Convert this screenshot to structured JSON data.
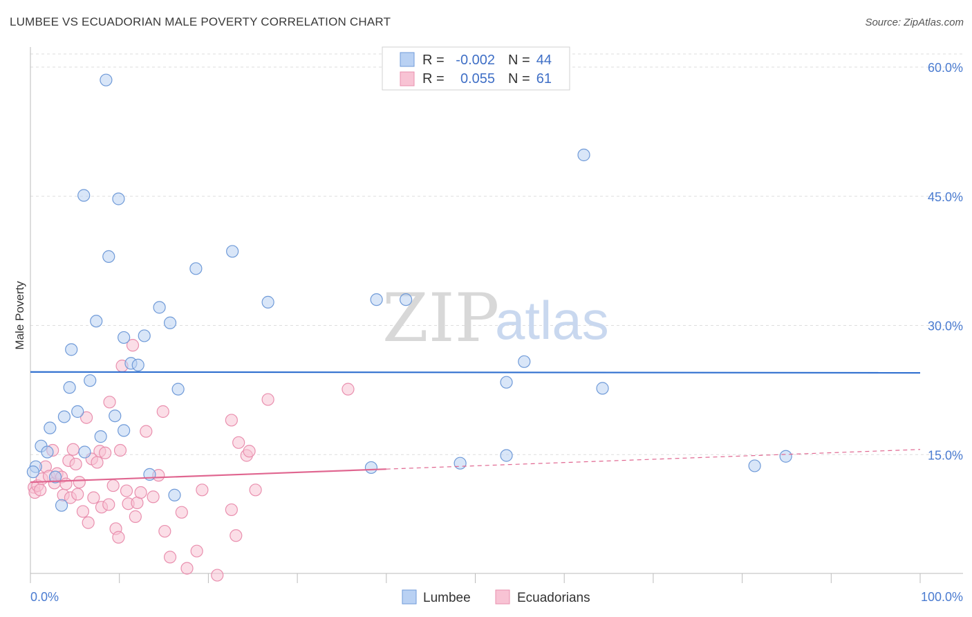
{
  "title": "LUMBEE VS ECUADORIAN MALE POVERTY CORRELATION CHART",
  "source": "Source: ZipAtlas.com",
  "watermark": {
    "zip": "ZIP",
    "atlas": "atlas"
  },
  "colors": {
    "lumbee_fill": "#b9d1f3",
    "lumbee_stroke": "#6f9ad8",
    "lumbee_line": "#2f6fcf",
    "ecuadorian_fill": "#f8c3d4",
    "ecuadorian_stroke": "#e98fae",
    "ecuadorian_line": "#e06690",
    "tick": "#4a7bd0",
    "grid": "#dddddd"
  },
  "legend": {
    "row1": {
      "r_label": "R =",
      "r_value": "-0.002",
      "n_label": "N =",
      "n_value": "44"
    },
    "row2": {
      "r_label": "R =",
      "r_value": "0.055",
      "n_label": "N =",
      "n_value": "61"
    }
  },
  "chart_data": {
    "type": "scatter",
    "title": "LUMBEE VS ECUADORIAN MALE POVERTY CORRELATION CHART",
    "xlabel": "",
    "ylabel": "Male Poverty",
    "xlim": [
      0,
      100
    ],
    "ylim": [
      0,
      61.5
    ],
    "x_tick_labels": [
      "0.0%",
      "100.0%"
    ],
    "y_ticks": [
      15,
      30,
      45,
      60
    ],
    "y_tick_labels": [
      "15.0%",
      "30.0%",
      "45.0%",
      "60.0%"
    ],
    "grid": "horizontal dashed",
    "legend_position": "top-center",
    "series": [
      {
        "name": "Lumbee",
        "r": -0.002,
        "n": 44,
        "trend": {
          "x": [
            0,
            100
          ],
          "y": [
            24.6,
            24.5
          ]
        },
        "points": [
          [
            0.6,
            13.6
          ],
          [
            0.3,
            13.0
          ],
          [
            1.2,
            16.0
          ],
          [
            1.9,
            15.3
          ],
          [
            2.2,
            18.1
          ],
          [
            2.8,
            12.4
          ],
          [
            3.5,
            9.1
          ],
          [
            3.8,
            19.4
          ],
          [
            4.4,
            22.8
          ],
          [
            4.6,
            27.2
          ],
          [
            5.3,
            20.0
          ],
          [
            6.1,
            15.3
          ],
          [
            6.0,
            45.1
          ],
          [
            6.7,
            23.6
          ],
          [
            7.4,
            30.5
          ],
          [
            7.9,
            17.1
          ],
          [
            8.5,
            58.5
          ],
          [
            8.8,
            38.0
          ],
          [
            9.5,
            19.5
          ],
          [
            9.9,
            44.7
          ],
          [
            10.5,
            17.8
          ],
          [
            10.5,
            28.6
          ],
          [
            11.3,
            25.6
          ],
          [
            12.1,
            25.4
          ],
          [
            12.8,
            28.8
          ],
          [
            13.4,
            12.7
          ],
          [
            14.5,
            32.1
          ],
          [
            15.7,
            30.3
          ],
          [
            16.2,
            10.3
          ],
          [
            16.6,
            22.6
          ],
          [
            18.6,
            36.6
          ],
          [
            22.7,
            38.6
          ],
          [
            26.7,
            32.7
          ],
          [
            38.3,
            13.5
          ],
          [
            38.9,
            33.0
          ],
          [
            42.2,
            33.0
          ],
          [
            48.3,
            14.0
          ],
          [
            53.5,
            23.4
          ],
          [
            53.5,
            14.9
          ],
          [
            55.5,
            25.8
          ],
          [
            62.2,
            49.8
          ],
          [
            64.3,
            22.7
          ],
          [
            81.4,
            13.7
          ],
          [
            84.9,
            14.8
          ]
        ]
      },
      {
        "name": "Ecuadorians",
        "r": 0.055,
        "n": 61,
        "trend": {
          "x": [
            0,
            100
          ],
          "y": [
            11.8,
            15.6
          ]
        },
        "trend_solid_until": 40,
        "points": [
          [
            0.4,
            11.2
          ],
          [
            0.5,
            10.6
          ],
          [
            0.8,
            11.4
          ],
          [
            1.1,
            10.9
          ],
          [
            1.3,
            12.2
          ],
          [
            1.7,
            13.6
          ],
          [
            2.1,
            12.5
          ],
          [
            2.5,
            15.5
          ],
          [
            2.7,
            11.7
          ],
          [
            3.0,
            12.8
          ],
          [
            3.5,
            12.4
          ],
          [
            3.7,
            10.3
          ],
          [
            4.0,
            11.6
          ],
          [
            4.3,
            14.3
          ],
          [
            4.5,
            10.0
          ],
          [
            4.8,
            15.6
          ],
          [
            5.1,
            13.9
          ],
          [
            5.3,
            10.4
          ],
          [
            5.5,
            11.8
          ],
          [
            5.9,
            8.4
          ],
          [
            6.3,
            19.3
          ],
          [
            6.5,
            7.1
          ],
          [
            6.9,
            14.5
          ],
          [
            7.1,
            10.0
          ],
          [
            7.5,
            14.1
          ],
          [
            7.8,
            15.4
          ],
          [
            8.0,
            8.9
          ],
          [
            8.4,
            15.2
          ],
          [
            8.8,
            9.2
          ],
          [
            8.9,
            21.1
          ],
          [
            9.3,
            11.4
          ],
          [
            9.6,
            6.4
          ],
          [
            9.9,
            5.4
          ],
          [
            10.1,
            15.5
          ],
          [
            10.3,
            25.3
          ],
          [
            10.8,
            10.8
          ],
          [
            11.0,
            9.3
          ],
          [
            11.5,
            27.7
          ],
          [
            11.8,
            7.8
          ],
          [
            12.0,
            9.4
          ],
          [
            12.4,
            10.6
          ],
          [
            13.0,
            17.7
          ],
          [
            13.8,
            10.1
          ],
          [
            14.4,
            12.6
          ],
          [
            14.9,
            20.0
          ],
          [
            15.1,
            6.1
          ],
          [
            15.7,
            3.1
          ],
          [
            17.0,
            8.3
          ],
          [
            17.6,
            1.8
          ],
          [
            18.7,
            3.8
          ],
          [
            19.3,
            10.9
          ],
          [
            21.0,
            1.0
          ],
          [
            22.6,
            8.6
          ],
          [
            22.6,
            19.0
          ],
          [
            23.1,
            5.6
          ],
          [
            23.4,
            16.4
          ],
          [
            24.3,
            14.9
          ],
          [
            24.6,
            15.4
          ],
          [
            25.3,
            10.9
          ],
          [
            26.7,
            21.4
          ],
          [
            35.7,
            22.6
          ]
        ]
      }
    ]
  }
}
